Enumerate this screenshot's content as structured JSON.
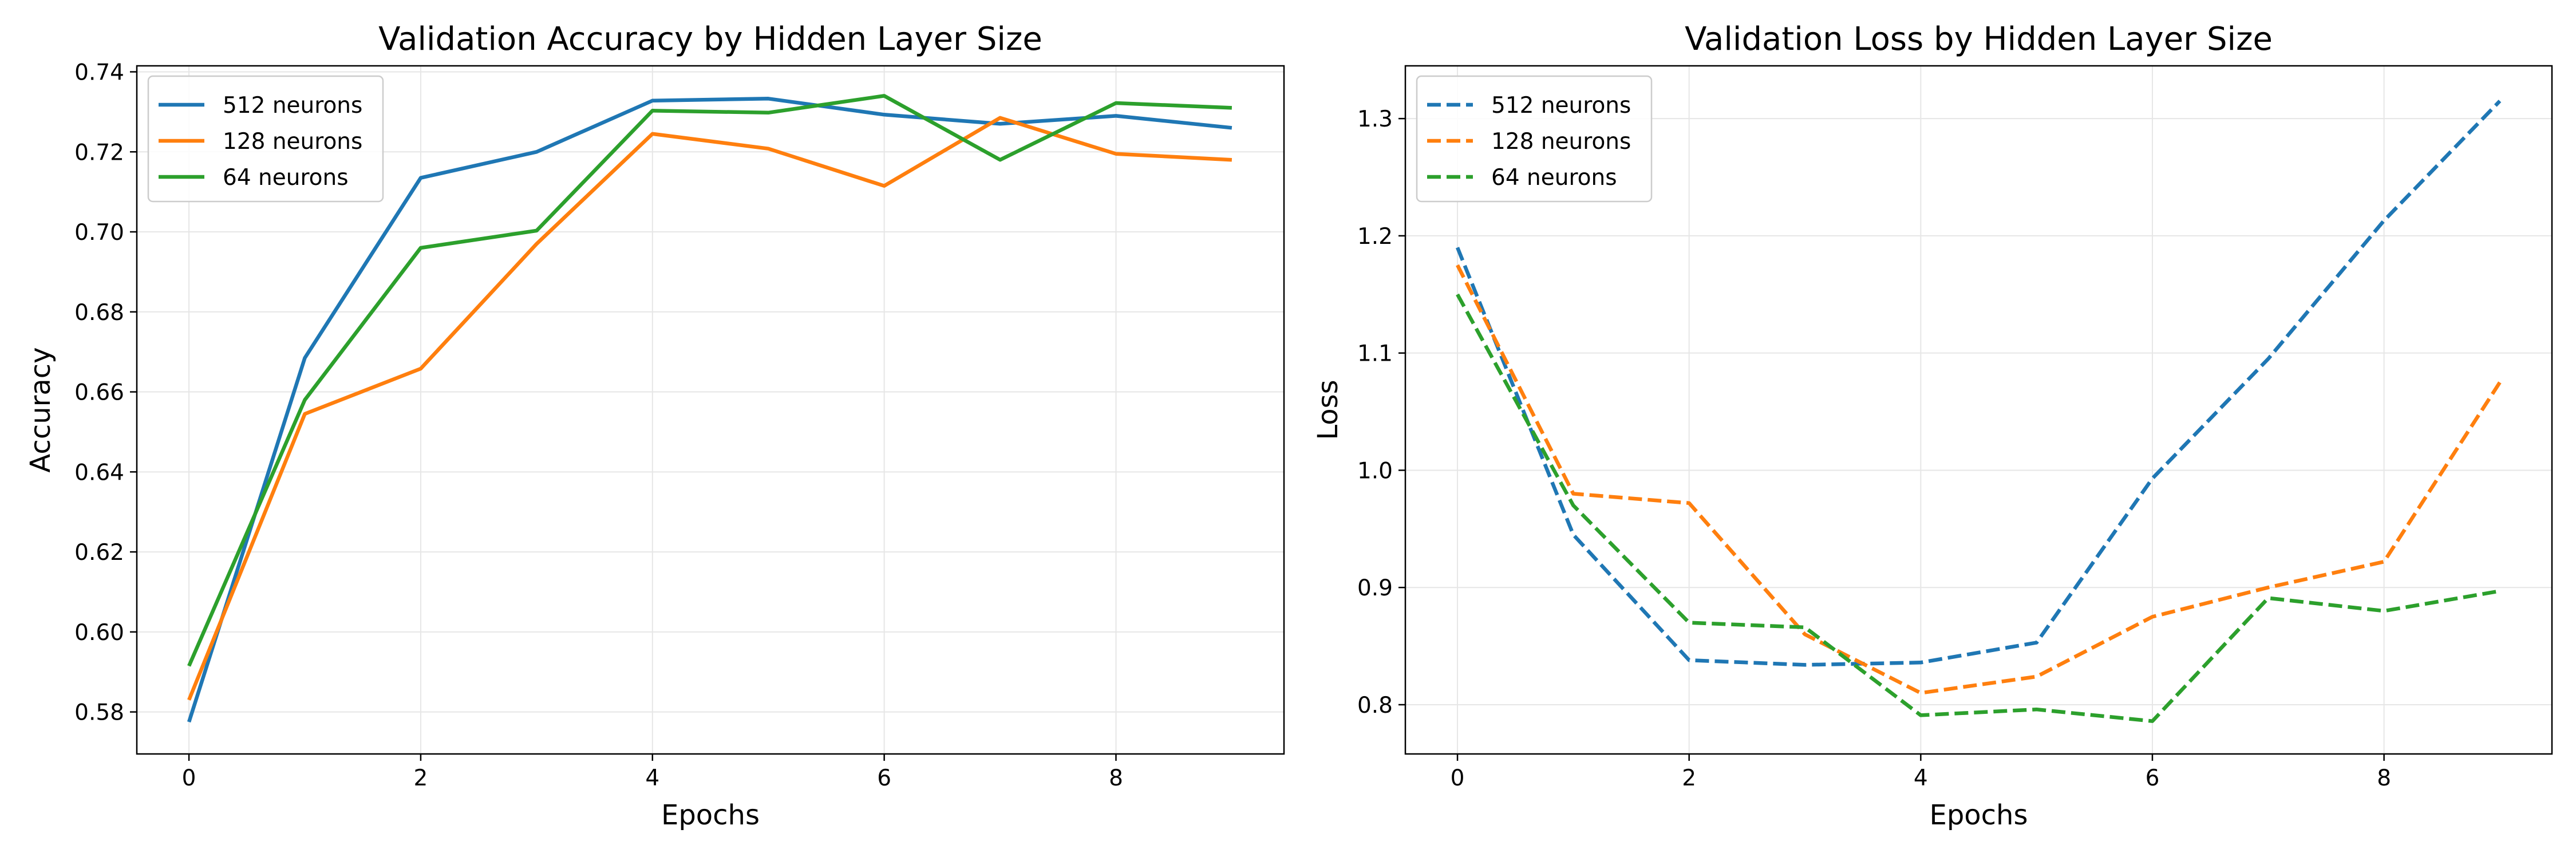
{
  "chart_data": [
    {
      "type": "line",
      "title": "Validation Accuracy by Hidden Layer Size",
      "xlabel": "Epochs",
      "ylabel": "Accuracy",
      "x": [
        0,
        1,
        2,
        3,
        4,
        5,
        6,
        7,
        8,
        9
      ],
      "xlim": [
        -0.45,
        9.45
      ],
      "ylim": [
        0.5695,
        0.7415
      ],
      "xticks": [
        0,
        2,
        4,
        6,
        8
      ],
      "yticks": [
        0.58,
        0.6,
        0.62,
        0.64,
        0.66,
        0.68,
        0.7,
        0.72,
        0.74
      ],
      "ytick_labels": [
        "0.58",
        "0.60",
        "0.62",
        "0.64",
        "0.66",
        "0.68",
        "0.70",
        "0.72",
        "0.74"
      ],
      "grid": true,
      "legend_position": "upper-left",
      "series": [
        {
          "name": "512 neurons",
          "color": "#1f77b4",
          "dash": "solid",
          "values": [
            0.5775,
            0.6685,
            0.7135,
            0.72,
            0.7328,
            0.7333,
            0.7293,
            0.727,
            0.729,
            0.726
          ]
        },
        {
          "name": "128 neurons",
          "color": "#ff7f0e",
          "dash": "solid",
          "values": [
            0.583,
            0.6545,
            0.6658,
            0.697,
            0.7245,
            0.7208,
            0.7115,
            0.7285,
            0.7195,
            0.718
          ]
        },
        {
          "name": "64 neurons",
          "color": "#2ca02c",
          "dash": "solid",
          "values": [
            0.5915,
            0.658,
            0.696,
            0.7003,
            0.7303,
            0.7298,
            0.734,
            0.718,
            0.7322,
            0.731
          ]
        }
      ]
    },
    {
      "type": "line",
      "title": "Validation Loss by Hidden Layer Size",
      "xlabel": "Epochs",
      "ylabel": "Loss",
      "x": [
        0,
        1,
        2,
        3,
        4,
        5,
        6,
        7,
        8,
        9
      ],
      "xlim": [
        -0.45,
        9.45
      ],
      "ylim": [
        0.758,
        1.345
      ],
      "xticks": [
        0,
        2,
        4,
        6,
        8
      ],
      "yticks": [
        0.8,
        0.9,
        1.0,
        1.1,
        1.2,
        1.3
      ],
      "ytick_labels": [
        "0.8",
        "0.9",
        "1.0",
        "1.1",
        "1.2",
        "1.3"
      ],
      "grid": true,
      "legend_position": "upper-left",
      "series": [
        {
          "name": "512 neurons",
          "color": "#1f77b4",
          "dash": "dashed",
          "values": [
            1.19,
            0.945,
            0.838,
            0.834,
            0.836,
            0.853,
            0.993,
            1.095,
            1.213,
            1.315
          ]
        },
        {
          "name": "128 neurons",
          "color": "#ff7f0e",
          "dash": "dashed",
          "values": [
            1.175,
            0.98,
            0.972,
            0.86,
            0.81,
            0.824,
            0.875,
            0.9,
            0.922,
            1.075
          ]
        },
        {
          "name": "64 neurons",
          "color": "#2ca02c",
          "dash": "dashed",
          "values": [
            1.15,
            0.97,
            0.87,
            0.866,
            0.791,
            0.796,
            0.786,
            0.891,
            0.88,
            0.897
          ]
        }
      ]
    }
  ]
}
